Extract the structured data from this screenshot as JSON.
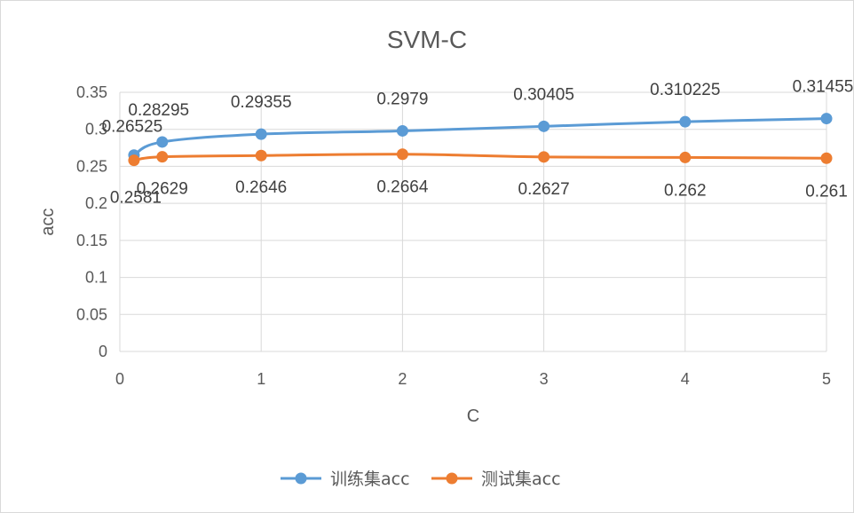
{
  "chart_data": {
    "type": "line",
    "title": "SVM-C",
    "xlabel": "C",
    "ylabel": "acc",
    "xlim": [
      0,
      5
    ],
    "ylim": [
      0,
      0.35
    ],
    "xticks": [
      "0",
      "1",
      "2",
      "3",
      "4",
      "5"
    ],
    "yticks": [
      "0",
      "0.05",
      "0.1",
      "0.15",
      "0.2",
      "0.25",
      "0.3",
      "0.35"
    ],
    "grid": "vertical and horizontal",
    "legend_position": "bottom",
    "x": [
      0.1,
      0.3,
      1,
      2,
      3,
      4,
      5
    ],
    "series": [
      {
        "name": "训练集acc",
        "color": "#5b9bd5",
        "values": [
          0.26525,
          0.28295,
          0.29355,
          0.2979,
          0.30405,
          0.310225,
          0.31455
        ],
        "labels": [
          "0.26525",
          "0.28295",
          "0.29355",
          "0.2979",
          "0.30405",
          "0.310225",
          "0.31455"
        ]
      },
      {
        "name": "测试集acc",
        "color": "#ed7d31",
        "values": [
          0.2581,
          0.2629,
          0.2646,
          0.2664,
          0.2627,
          0.262,
          0.261
        ],
        "labels": [
          "0.2581",
          "0.2629",
          "0.2646",
          "0.2664",
          "0.2627",
          "0.262",
          "0.261"
        ]
      }
    ]
  }
}
